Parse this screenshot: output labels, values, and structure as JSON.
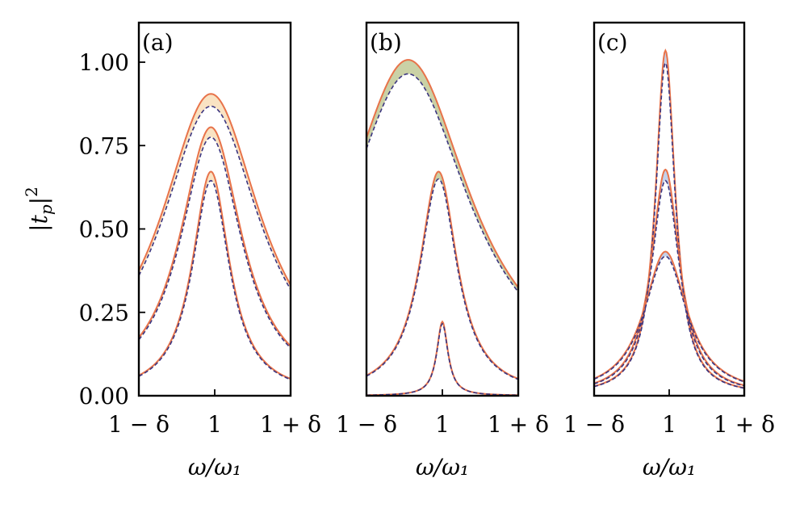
{
  "chart_data": {
    "type": "line",
    "ylabel": "|t_p|²",
    "ylabel_main": "|t",
    "ylabel_sub": "p",
    "ylabel_sup": "2",
    "ylim": [
      0,
      1.1
    ],
    "y_ticks": [
      {
        "value": 0.0,
        "label": "0.00"
      },
      {
        "value": 0.25,
        "label": "0.25"
      },
      {
        "value": 0.5,
        "label": "0.50"
      },
      {
        "value": 0.75,
        "label": "0.75"
      },
      {
        "value": 1.0,
        "label": "1.00"
      }
    ],
    "x_ticks": [
      {
        "value": -1,
        "label": "1 − δ"
      },
      {
        "value": 0,
        "label": "1"
      },
      {
        "value": 1,
        "label": "1 + δ"
      }
    ],
    "xlabel": "ω/ω₁",
    "series_styles": {
      "upper": {
        "color": "#e8734a",
        "style": "solid"
      },
      "lower": {
        "color": "#3b3580",
        "style": "dashed"
      }
    },
    "panels": [
      {
        "label": "(a)",
        "fill_color": "#f2c27a",
        "curves": [
          {
            "upper": {
              "peak": 0.905,
              "center": -0.05,
              "width": 0.8
            },
            "lower": {
              "peak": 0.868,
              "center": -0.05,
              "width": 0.8
            }
          },
          {
            "upper": {
              "peak": 0.805,
              "center": -0.05,
              "width": 0.5
            },
            "lower": {
              "peak": 0.775,
              "center": -0.05,
              "width": 0.5
            }
          },
          {
            "upper": {
              "peak": 0.672,
              "center": -0.05,
              "width": 0.3
            },
            "lower": {
              "peak": 0.645,
              "center": -0.05,
              "width": 0.3
            }
          }
        ]
      },
      {
        "label": "(b)",
        "fill_color": "#8a9a3a",
        "curves": [
          {
            "upper": {
              "peak": 1.007,
              "center": -0.45,
              "width": 1.0
            },
            "lower": {
              "peak": 0.965,
              "center": -0.45,
              "width": 1.0
            }
          },
          {
            "upper": {
              "peak": 0.672,
              "center": -0.05,
              "width": 0.3
            },
            "lower": {
              "peak": 0.65,
              "center": -0.05,
              "width": 0.3
            }
          },
          {
            "upper": {
              "peak": 0.222,
              "center": 0.0,
              "width": 0.09
            },
            "lower": {
              "peak": 0.216,
              "center": 0.0,
              "width": 0.09
            }
          }
        ]
      },
      {
        "label": "(c)",
        "fill_color": "#7a9ad0",
        "curves": [
          {
            "upper": {
              "peak": 1.035,
              "center": -0.05,
              "width": 0.16
            },
            "lower": {
              "peak": 0.998,
              "center": -0.05,
              "width": 0.16
            }
          },
          {
            "upper": {
              "peak": 0.678,
              "center": -0.05,
              "width": 0.23
            },
            "lower": {
              "peak": 0.645,
              "center": -0.05,
              "width": 0.23
            }
          },
          {
            "upper": {
              "peak": 0.432,
              "center": -0.05,
              "width": 0.35
            },
            "lower": {
              "peak": 0.418,
              "center": -0.05,
              "width": 0.35
            }
          }
        ]
      }
    ]
  }
}
